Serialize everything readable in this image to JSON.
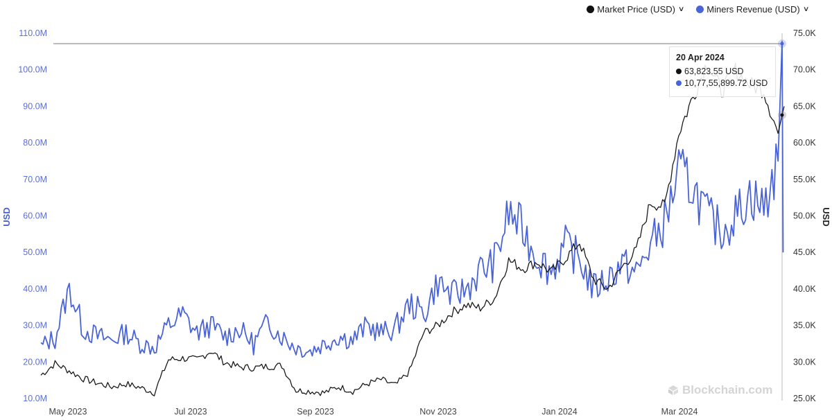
{
  "legend": {
    "items": [
      {
        "label": "Market Price (USD)",
        "color": "#111111",
        "icon": "chevron-down-icon"
      },
      {
        "label": "Miners Revenue (USD)",
        "color": "#4a63d8",
        "icon": "chevron-down-icon"
      }
    ]
  },
  "tooltip": {
    "date": "20 Apr 2024",
    "rows": [
      {
        "value": "63,823.55 USD",
        "color": "#111111"
      },
      {
        "value": "10,77,55,899.72 USD",
        "color": "#4a63d8"
      }
    ]
  },
  "watermark": {
    "text": "Blockchain.com",
    "icon": "blockchain-logo-icon"
  },
  "colors": {
    "market_price": "#111111",
    "miners_revenue": "#4a63d8",
    "left_axis": "#5a6fd8",
    "right_axis": "#333333"
  },
  "chart_data": {
    "type": "line",
    "title": "",
    "xlabel": "",
    "ylabel_left": "USD",
    "ylabel_right": "USD",
    "x_tick_labels": [
      "May 2023",
      "Jul 2023",
      "Sep 2023",
      "Nov 2023",
      "Jan 2024",
      "Mar 2024"
    ],
    "y_left_ticks": [
      "10.0M",
      "20.0M",
      "30.0M",
      "40.0M",
      "50.0M",
      "60.0M",
      "70.0M",
      "80.0M",
      "90.0M",
      "100.0M",
      "110.0M"
    ],
    "y_right_ticks": [
      "25.0K",
      "30.0K",
      "35.0K",
      "40.0K",
      "45.0K",
      "50.0K",
      "55.0K",
      "60.0K",
      "65.0K",
      "70.0K",
      "75.0K"
    ],
    "ylim_left": [
      10000000,
      110000000
    ],
    "ylim_right": [
      25000,
      75000
    ],
    "grid": false,
    "legend_position": "top-right",
    "x_range": [
      "2023-04-20",
      "2024-04-20"
    ],
    "series": [
      {
        "name": "Market Price (USD)",
        "axis": "right",
        "unit": "USD",
        "x": [
          "2023-04-20",
          "2023-04-27",
          "2023-05-04",
          "2023-05-11",
          "2023-05-18",
          "2023-05-25",
          "2023-06-01",
          "2023-06-08",
          "2023-06-15",
          "2023-06-22",
          "2023-06-29",
          "2023-07-06",
          "2023-07-13",
          "2023-07-20",
          "2023-07-27",
          "2023-08-03",
          "2023-08-10",
          "2023-08-17",
          "2023-08-24",
          "2023-08-31",
          "2023-09-07",
          "2023-09-14",
          "2023-09-21",
          "2023-09-28",
          "2023-10-05",
          "2023-10-12",
          "2023-10-19",
          "2023-10-26",
          "2023-11-02",
          "2023-11-09",
          "2023-11-16",
          "2023-11-23",
          "2023-11-30",
          "2023-12-07",
          "2023-12-14",
          "2023-12-21",
          "2023-12-28",
          "2024-01-04",
          "2024-01-11",
          "2024-01-18",
          "2024-01-25",
          "2024-02-01",
          "2024-02-08",
          "2024-02-15",
          "2024-02-22",
          "2024-02-29",
          "2024-03-07",
          "2024-03-14",
          "2024-03-21",
          "2024-03-28",
          "2024-04-04",
          "2024-04-11",
          "2024-04-18",
          "2024-04-20"
        ],
        "values": [
          28200,
          29800,
          28800,
          27700,
          27100,
          26600,
          27000,
          26500,
          25800,
          30300,
          30500,
          30300,
          31500,
          29900,
          29300,
          29200,
          29400,
          29500,
          26100,
          26000,
          25800,
          26600,
          26000,
          27000,
          27600,
          26800,
          28700,
          34000,
          35000,
          36800,
          37800,
          37400,
          38700,
          43900,
          42800,
          43700,
          42300,
          44200,
          46400,
          41300,
          40000,
          43000,
          45300,
          51800,
          51300,
          61400,
          66300,
          71000,
          67100,
          69900,
          68000,
          67200,
          61300,
          63824
        ]
      },
      {
        "name": "Miners Revenue (USD)",
        "axis": "left",
        "unit": "USD",
        "x": [
          "2023-04-20",
          "2023-04-27",
          "2023-05-04",
          "2023-05-11",
          "2023-05-18",
          "2023-05-25",
          "2023-06-01",
          "2023-06-08",
          "2023-06-15",
          "2023-06-22",
          "2023-06-29",
          "2023-07-06",
          "2023-07-13",
          "2023-07-20",
          "2023-07-27",
          "2023-08-03",
          "2023-08-10",
          "2023-08-17",
          "2023-08-24",
          "2023-08-31",
          "2023-09-07",
          "2023-09-14",
          "2023-09-21",
          "2023-09-28",
          "2023-10-05",
          "2023-10-12",
          "2023-10-19",
          "2023-10-26",
          "2023-11-02",
          "2023-11-09",
          "2023-11-16",
          "2023-11-23",
          "2023-11-30",
          "2023-12-07",
          "2023-12-14",
          "2023-12-21",
          "2023-12-28",
          "2024-01-04",
          "2024-01-11",
          "2024-01-18",
          "2024-01-25",
          "2024-02-01",
          "2024-02-08",
          "2024-02-15",
          "2024-02-22",
          "2024-02-29",
          "2024-03-07",
          "2024-03-14",
          "2024-03-21",
          "2024-03-28",
          "2024-04-04",
          "2024-04-11",
          "2024-04-18",
          "2024-04-20"
        ],
        "values": [
          24000000,
          27000000,
          40000000,
          29000000,
          27000000,
          26000000,
          28000000,
          25000000,
          24000000,
          30000000,
          33000000,
          28000000,
          30000000,
          27000000,
          29000000,
          25000000,
          31000000,
          27000000,
          24000000,
          23000000,
          25000000,
          27000000,
          26000000,
          30000000,
          28000000,
          29000000,
          36000000,
          33000000,
          42000000,
          38000000,
          40000000,
          45000000,
          47000000,
          61000000,
          56000000,
          49000000,
          45000000,
          52000000,
          48000000,
          40000000,
          43000000,
          47000000,
          44000000,
          52000000,
          58000000,
          72000000,
          68000000,
          60000000,
          56000000,
          60000000,
          66000000,
          62000000,
          75000000,
          107755900
        ]
      }
    ]
  }
}
